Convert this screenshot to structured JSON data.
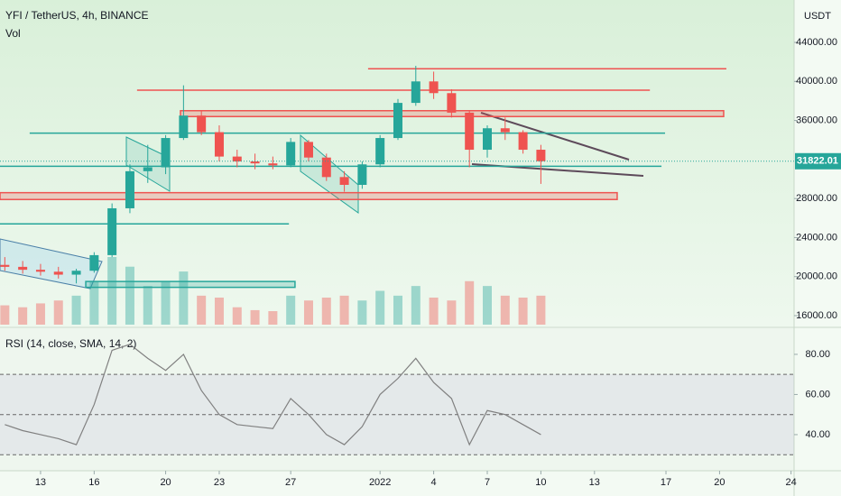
{
  "chart_data": {
    "type": "candlestick",
    "title": "YFI / TetherUS, 4h, BINANCE",
    "volume_label": "Vol",
    "y_unit": "USDT",
    "xlim": [
      -0.27,
      44.17
    ],
    "xticks": [
      {
        "value": 2,
        "label": "13"
      },
      {
        "value": 5,
        "label": "16"
      },
      {
        "value": 9,
        "label": "20"
      },
      {
        "value": 12,
        "label": "23"
      },
      {
        "value": 16,
        "label": "27"
      },
      {
        "value": 21,
        "label": "2022"
      },
      {
        "value": 24,
        "label": "4"
      },
      {
        "value": 27,
        "label": "7"
      },
      {
        "value": 30,
        "label": "10"
      },
      {
        "value": 33,
        "label": "13"
      },
      {
        "value": 37,
        "label": "17"
      },
      {
        "value": 40,
        "label": "20"
      },
      {
        "value": 44,
        "label": "24"
      }
    ],
    "ylim": [
      15076,
      48343
    ],
    "yticks": [
      {
        "value": 44000,
        "label": "44000.00"
      },
      {
        "value": 40000,
        "label": "40000.00"
      },
      {
        "value": 36000,
        "label": "36000.00"
      },
      {
        "value": 28000,
        "label": "28000.00"
      },
      {
        "value": 24000,
        "label": "24000.00"
      },
      {
        "value": 20000,
        "label": "20000.00"
      },
      {
        "value": 16000,
        "label": "16000.00"
      }
    ],
    "up_color": "#26a69a",
    "down_color": "#ef5350",
    "x": [
      0,
      1,
      2,
      3,
      4,
      5,
      6,
      7,
      8,
      9,
      10,
      11,
      12,
      13,
      14,
      15,
      16,
      17,
      18,
      19,
      20,
      21,
      22,
      23,
      24,
      25,
      26,
      27,
      28,
      29,
      30
    ],
    "open": [
      21200,
      21000,
      20700,
      20500,
      20200,
      20600,
      22200,
      27000,
      30800,
      31200,
      34200,
      36500,
      34800,
      32300,
      31800,
      31600,
      31400,
      33800,
      32200,
      30200,
      29400,
      31500,
      34200,
      37800,
      40000,
      38800,
      36800,
      33000,
      35200,
      34800,
      33000
    ],
    "high": [
      22000,
      21600,
      21300,
      21000,
      20800,
      22500,
      27500,
      31500,
      33500,
      34500,
      39600,
      37000,
      35500,
      33000,
      32600,
      32300,
      34200,
      34000,
      32600,
      30800,
      31800,
      34500,
      38200,
      41600,
      41000,
      39200,
      37000,
      35500,
      36300,
      35000,
      33500
    ],
    "low": [
      20600,
      20300,
      20100,
      19800,
      19300,
      20400,
      22000,
      26500,
      29600,
      30500,
      34000,
      34500,
      31800,
      31200,
      31000,
      31000,
      31200,
      31800,
      29800,
      28700,
      29000,
      31200,
      34000,
      37500,
      38200,
      36300,
      31200,
      32200,
      34000,
      32600,
      29500
    ],
    "close": [
      21000,
      20700,
      20500,
      20200,
      20600,
      22200,
      27000,
      30800,
      31200,
      34200,
      36500,
      34800,
      32300,
      31800,
      31600,
      31400,
      33800,
      32200,
      30200,
      29400,
      31500,
      34200,
      37800,
      40000,
      38800,
      36800,
      33000,
      35200,
      34800,
      33000,
      31822.01
    ],
    "volume": [
      20,
      18,
      22,
      25,
      30,
      45,
      70,
      60,
      40,
      45,
      55,
      30,
      28,
      18,
      15,
      14,
      30,
      25,
      28,
      30,
      25,
      35,
      30,
      40,
      28,
      25,
      45,
      40,
      30,
      28,
      30
    ],
    "levels": [
      {
        "price": 41300,
        "from": 20.33,
        "to": 40.38,
        "color": "#ef5350"
      },
      {
        "price": 39100,
        "from": 7.4,
        "to": 36.1,
        "color": "#ef5350"
      },
      {
        "low": 36400,
        "high": 37000,
        "from": 9.83,
        "to": 40.23,
        "color": "#ef5350"
      },
      {
        "price": 34700,
        "from": 1.39,
        "to": 36.95,
        "color": "#26a69a"
      },
      {
        "price": 31300,
        "from": -0.27,
        "to": 36.75,
        "color": "#26a69a"
      },
      {
        "low": 27900,
        "high": 28600,
        "from": -0.27,
        "to": 34.27,
        "color": "#ef5350"
      },
      {
        "price": 25400,
        "from": -0.27,
        "to": 15.9,
        "color": "#26a69a"
      },
      {
        "low": 18900,
        "high": 19500,
        "from": 4.53,
        "to": 16.24,
        "color": "#26a69a"
      }
    ],
    "rsi": {
      "title": "RSI (14, close, SMA, 14, 2)",
      "values": [
        45,
        42,
        40,
        38,
        35,
        55,
        82,
        85,
        78,
        72,
        80,
        62,
        50,
        45,
        44,
        43,
        58,
        50,
        40,
        35,
        44,
        60,
        68,
        78,
        66,
        58,
        35,
        52,
        50,
        45,
        40
      ],
      "ylim": [
        22,
        93
      ],
      "yticks": [
        {
          "value": 80,
          "label": "80.00"
        },
        {
          "value": 60,
          "label": "60.00"
        },
        {
          "value": 40,
          "label": "40.00"
        }
      ],
      "bands": [
        70,
        50,
        30
      ],
      "color": "#808080"
    }
  }
}
